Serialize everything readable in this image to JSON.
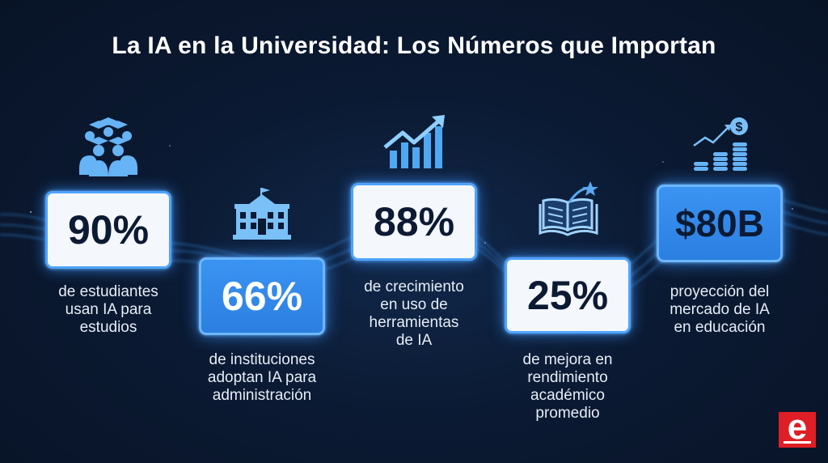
{
  "title": "La IA en la Universidad: Los Números que Importan",
  "stats": [
    {
      "value": "90%",
      "description": [
        "de estudiantes",
        "usan IA para",
        "estudios"
      ],
      "icon": "graduates-icon"
    },
    {
      "value": "66%",
      "description": [
        "de instituciones",
        "adoptan IA para",
        "administración"
      ],
      "icon": "university-building-icon"
    },
    {
      "value": "88%",
      "description": [
        "de crecimiento",
        "en uso de",
        "herramientas",
        "de IA"
      ],
      "icon": "growth-chart-icon"
    },
    {
      "value": "25%",
      "description": [
        "de mejora en",
        "rendimiento",
        "académico",
        "promedio"
      ],
      "icon": "book-star-icon"
    },
    {
      "value": "$80B",
      "description": [
        "proyección del",
        "mercado de IA",
        "en educación"
      ],
      "icon": "money-growth-icon"
    }
  ],
  "logo": {
    "letter": "e"
  },
  "colors": {
    "accent": "#3b93f2",
    "background": "#0b1a33",
    "logo": "#e01e26"
  }
}
